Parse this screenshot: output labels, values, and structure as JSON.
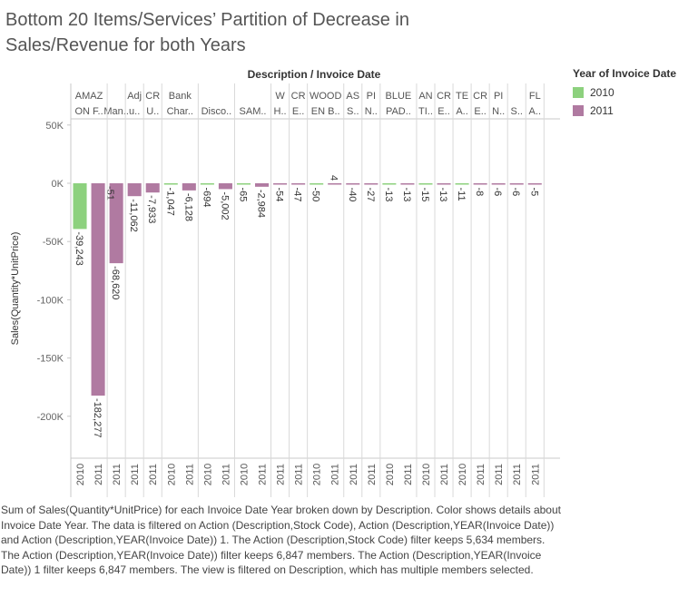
{
  "chart_data": {
    "type": "bar",
    "title": "Bottom 20 Items/Services’ Partition of Decrease in Sales/Revenue for both Years",
    "header_label": "Description  /  Invoice Date",
    "ylabel": "Sales(Quantity*UnitPrice)",
    "ylim": [
      -240000,
      62000
    ],
    "y_ticks": [
      50000,
      0,
      -50000,
      -100000,
      -150000,
      -200000
    ],
    "y_tick_labels": [
      "50K",
      "0K",
      "-50K",
      "-100K",
      "-150K",
      "-200K"
    ],
    "legend_title": "Year of Invoice Date",
    "series_colors": {
      "2010": "#8dd17e",
      "2011": "#b07aa1"
    },
    "legend": [
      {
        "label": "2010",
        "color": "#8dd17e"
      },
      {
        "label": "2011",
        "color": "#b07aa1"
      }
    ],
    "groups": [
      {
        "label_lines": [
          "AMAZ",
          "ON F.."
        ],
        "years": [
          "2010",
          "2011"
        ],
        "values": [
          -39243,
          -182277
        ],
        "labels": [
          "-39,243",
          "-182,277"
        ]
      },
      {
        "label_lines": [
          "",
          "Man.."
        ],
        "years": [
          "2011"
        ],
        "values": [
          -68620
        ],
        "labels": [
          "-68,620"
        ],
        "extra_labels": [
          "-51"
        ]
      },
      {
        "label_lines": [
          "Adj",
          "u.."
        ],
        "years": [
          "2011"
        ],
        "values": [
          -11062
        ],
        "labels": [
          "-11,062"
        ]
      },
      {
        "label_lines": [
          "CR",
          "U.."
        ],
        "years": [
          "2011"
        ],
        "values": [
          -7933
        ],
        "labels": [
          "-7,933"
        ]
      },
      {
        "label_lines": [
          "Bank",
          "Char.."
        ],
        "years": [
          "2010",
          "2011"
        ],
        "values": [
          -1047,
          -6128
        ],
        "labels": [
          "-1,047",
          "-6,128"
        ]
      },
      {
        "label_lines": [
          "",
          "Disco.."
        ],
        "years": [
          "2010",
          "2011"
        ],
        "values": [
          -694,
          -5002
        ],
        "labels": [
          "-694",
          "-5,002"
        ]
      },
      {
        "label_lines": [
          "",
          "SAM.."
        ],
        "years": [
          "2010",
          "2011"
        ],
        "values": [
          -65,
          -2984
        ],
        "labels": [
          "-65",
          "-2,984"
        ]
      },
      {
        "label_lines": [
          "W",
          "H.."
        ],
        "years": [
          "2011"
        ],
        "values": [
          -54
        ],
        "labels": [
          "-54"
        ]
      },
      {
        "label_lines": [
          "CR",
          "E.."
        ],
        "years": [
          "2011"
        ],
        "values": [
          -47
        ],
        "labels": [
          "-47"
        ]
      },
      {
        "label_lines": [
          "WOOD",
          "EN B.."
        ],
        "years": [
          "2010",
          "2011"
        ],
        "values": [
          -50,
          4
        ],
        "labels": [
          "-50",
          "4"
        ]
      },
      {
        "label_lines": [
          "AS",
          "S.."
        ],
        "years": [
          "2011"
        ],
        "values": [
          -40
        ],
        "labels": [
          "-40"
        ]
      },
      {
        "label_lines": [
          "PI",
          "N.."
        ],
        "years": [
          "2011"
        ],
        "values": [
          -27
        ],
        "labels": [
          "-27"
        ]
      },
      {
        "label_lines": [
          "BLUE",
          "PAD.."
        ],
        "years": [
          "2010",
          "2011"
        ],
        "values": [
          -13,
          -13
        ],
        "labels": [
          "-13",
          "-13"
        ]
      },
      {
        "label_lines": [
          "AN",
          "TI.."
        ],
        "years": [
          "2010"
        ],
        "values": [
          -15
        ],
        "labels": [
          "-15"
        ]
      },
      {
        "label_lines": [
          "CR",
          "E.."
        ],
        "years": [
          "2011"
        ],
        "values": [
          -13
        ],
        "labels": [
          "-13"
        ]
      },
      {
        "label_lines": [
          "TE",
          "A.."
        ],
        "years": [
          "2010"
        ],
        "values": [
          -11
        ],
        "labels": [
          "-11"
        ]
      },
      {
        "label_lines": [
          "CR",
          "E.."
        ],
        "years": [
          "2011"
        ],
        "values": [
          -8
        ],
        "labels": [
          "-8"
        ]
      },
      {
        "label_lines": [
          "PI",
          "N.."
        ],
        "years": [
          "2011"
        ],
        "values": [
          -6
        ],
        "labels": [
          "-6"
        ]
      },
      {
        "label_lines": [
          "",
          "S.."
        ],
        "years": [
          "2011"
        ],
        "values": [
          -6
        ],
        "labels": [
          "-6"
        ]
      },
      {
        "label_lines": [
          "FL",
          "A.."
        ],
        "years": [
          "2011"
        ],
        "values": [
          -5
        ],
        "labels": [
          "-5"
        ]
      }
    ]
  },
  "footnote": "Sum of Sales(Quantity*UnitPrice) for each Invoice Date Year broken down by Description.  Color shows details about Invoice Date Year. The data is filtered on Action (Description,Stock Code), Action (Description,YEAR(Invoice Date)) and Action (Description,YEAR(Invoice Date)) 1. The Action (Description,Stock Code) filter keeps 5,634 members. The Action (Description,YEAR(Invoice Date)) filter keeps 6,847 members. The Action (Description,YEAR(Invoice Date)) 1 filter keeps 6,847 members. The view is filtered on Description, which has multiple members selected."
}
